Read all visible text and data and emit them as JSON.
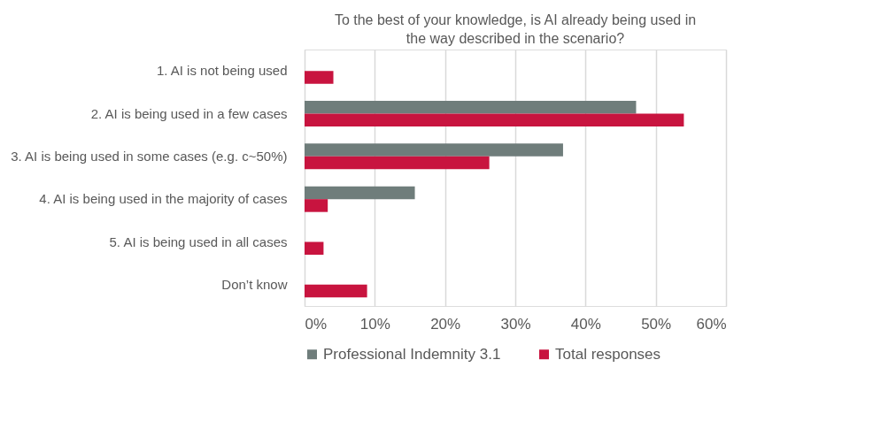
{
  "chart_data": {
    "type": "bar",
    "orientation": "horizontal",
    "title": "To the best of your knowledge,  is AI already being used in the way described in the scenario?",
    "categories": [
      "1. AI is not being used",
      "2. AI is being used in a few cases",
      "3. AI is being used in some cases (e.g. c~50%)",
      "4. AI is being used in the majority of cases",
      "5. AI is being used in all cases",
      "Don’t know"
    ],
    "series": [
      {
        "name": "Professional Indemnity 3.1",
        "color": "#6f7d7b",
        "values": [
          0,
          47.2,
          36.8,
          15.7,
          0,
          0
        ]
      },
      {
        "name": "Total responses",
        "color": "#c8143f",
        "values": [
          4.1,
          54.0,
          26.3,
          3.3,
          2.7,
          8.9
        ]
      }
    ],
    "xlim": [
      0,
      60
    ],
    "xticks": [
      {
        "value": 0,
        "label": "0%"
      },
      {
        "value": 10,
        "label": "10%"
      },
      {
        "value": 20,
        "label": "20%"
      },
      {
        "value": 30,
        "label": "30%"
      },
      {
        "value": 40,
        "label": "40%"
      },
      {
        "value": 50,
        "label": "50%"
      },
      {
        "value": 60,
        "label": "60%"
      }
    ],
    "grid": "x",
    "legend": "bottom"
  }
}
